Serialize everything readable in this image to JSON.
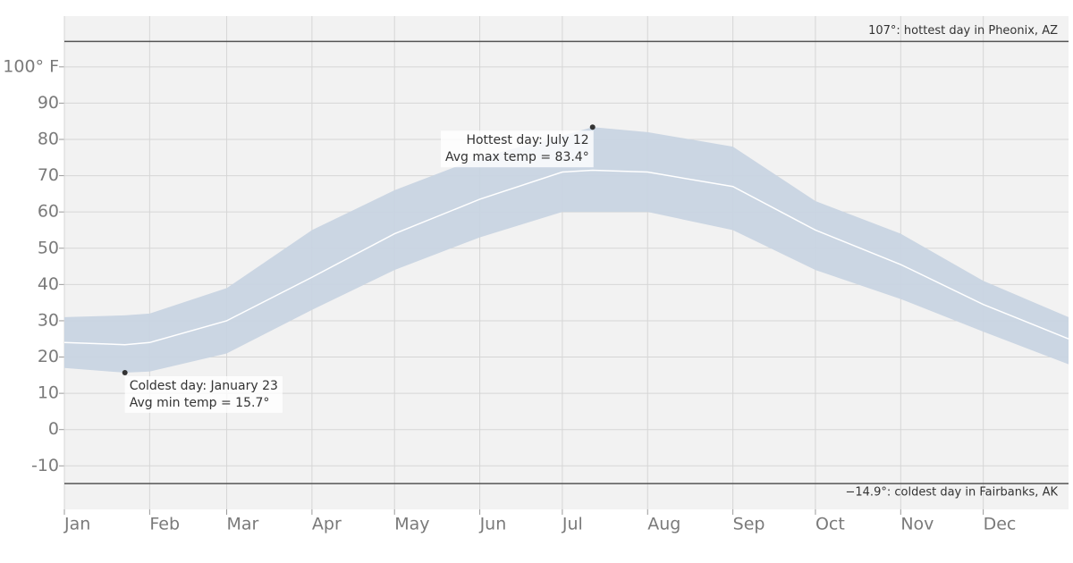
{
  "chart_data": {
    "type": "band-line",
    "x": [
      0,
      22,
      31,
      59,
      90,
      120,
      151,
      181,
      192,
      212,
      243,
      273,
      304,
      334,
      365
    ],
    "high": [
      31,
      31.5,
      32,
      39,
      55,
      66,
      75,
      81,
      83.4,
      82,
      78,
      63,
      54,
      41,
      31
    ],
    "low": [
      17,
      15.7,
      16,
      21,
      33,
      44,
      53,
      60,
      60,
      60,
      55,
      44,
      36,
      27,
      18
    ],
    "avg": [
      24,
      23.4,
      24,
      30,
      42,
      54,
      63.5,
      71,
      71.5,
      71,
      67,
      55,
      45.5,
      34.5,
      25
    ],
    "band_color": "#c8d4e2",
    "line_color": "#ffffff",
    "xlim": [
      0,
      365
    ],
    "xticks": [
      {
        "value": 0,
        "label": "Jan"
      },
      {
        "value": 31,
        "label": "Feb"
      },
      {
        "value": 59,
        "label": "Mar"
      },
      {
        "value": 90,
        "label": "Apr"
      },
      {
        "value": 120,
        "label": "May"
      },
      {
        "value": 151,
        "label": "Jun"
      },
      {
        "value": 181,
        "label": "Jul"
      },
      {
        "value": 212,
        "label": "Aug"
      },
      {
        "value": 243,
        "label": "Sep"
      },
      {
        "value": 273,
        "label": "Oct"
      },
      {
        "value": 304,
        "label": "Nov"
      },
      {
        "value": 334,
        "label": "Dec"
      }
    ],
    "ylim": [
      -22,
      114
    ],
    "yticks": [
      -10,
      0,
      10,
      20,
      30,
      40,
      50,
      60,
      70,
      80,
      90,
      {
        "value": 100,
        "label": "100° F"
      }
    ],
    "grid": true,
    "reference_lines": [
      {
        "value": 107,
        "label": "107°: hottest day in Pheonix, AZ"
      },
      {
        "value": -14.9,
        "label": "−14.9°: coldest day in Fairbanks, AK"
      }
    ],
    "annotations": [
      {
        "x": 192,
        "y": 83.4,
        "anchor": "end",
        "lines": [
          "Hottest day: July 12",
          "Avg max temp = 83.4°"
        ]
      },
      {
        "x": 22,
        "y": 15.7,
        "anchor": "start",
        "lines": [
          "Coldest day: January 23",
          "Avg min temp = 15.7°"
        ]
      }
    ]
  }
}
